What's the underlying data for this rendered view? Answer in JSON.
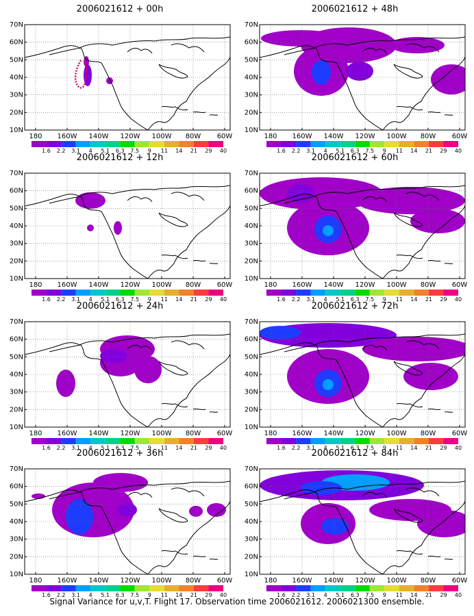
{
  "panels": [
    {
      "title": "2006021612 + 00h"
    },
    {
      "title": "2006021612 + 48h"
    },
    {
      "title": "2006021612 + 12h"
    },
    {
      "title": "2006021612 + 60h"
    },
    {
      "title": "2006021612 + 24h"
    },
    {
      "title": "2006021612 + 72h"
    },
    {
      "title": "2006021612 + 36h"
    },
    {
      "title": "2006021612 + 84h"
    }
  ],
  "lat_ticks": [
    "70N",
    "60N",
    "50N",
    "40N",
    "30N",
    "20N",
    "10N"
  ],
  "lon_ticks": [
    "180",
    "160W",
    "140W",
    "120W",
    "100W",
    "80W",
    "60W"
  ],
  "colorbar": {
    "labels": [
      "1.6",
      "2.2",
      "3.1",
      "4",
      "5.1",
      "6.3",
      "7.5",
      "9",
      "11",
      "14",
      "21",
      "29",
      "40"
    ],
    "colors": [
      "#a000c8",
      "#8200dc",
      "#1e3cff",
      "#00a0ff",
      "#00c8c8",
      "#00d28c",
      "#00dc00",
      "#a0e632",
      "#e6dc32",
      "#e6af2d",
      "#f08228",
      "#fa3c3c",
      "#f00082"
    ]
  },
  "footer": "Signal Variance for u,v,T. Flight 17. Observation time 2006021612. 2006021300 ensemble."
}
